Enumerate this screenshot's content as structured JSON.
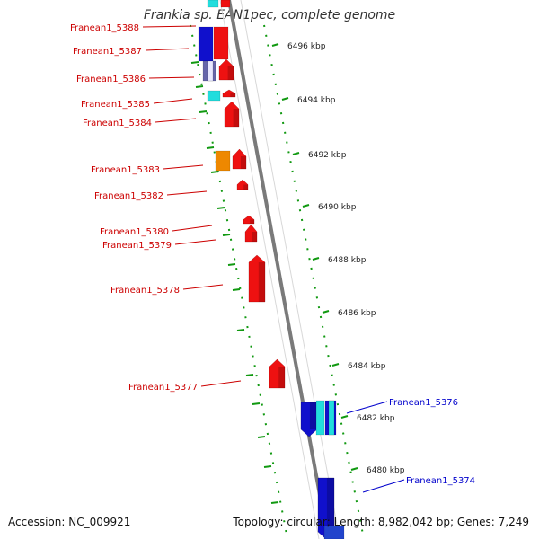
{
  "title": "Frankia sp. EAN1pec, complete genome",
  "accession": "Accession: NC_009921",
  "summary": "Topology: circular; Length: 8,982,042 bp; Genes: 7,249",
  "colors": {
    "forward_gene": "#ee1111",
    "reverse_gene": "#1010cc",
    "cyan_gene": "#22dddd",
    "orange_gene": "#ee8800",
    "forward_label": "#cc0000",
    "reverse_label": "#0000cc",
    "ruler": "#119911",
    "backbone": "#888888"
  },
  "ruler_ticks": [
    {
      "label": "6496 kbp"
    },
    {
      "label": "6494 kbp"
    },
    {
      "label": "6492 kbp"
    },
    {
      "label": "6490 kbp"
    },
    {
      "label": "6488 kbp"
    },
    {
      "label": "6486 kbp"
    },
    {
      "label": "6484 kbp"
    },
    {
      "label": "6482 kbp"
    },
    {
      "label": "6480 kbp"
    }
  ],
  "forward_labels": [
    {
      "name": "Franean1_5388"
    },
    {
      "name": "Franean1_5387"
    },
    {
      "name": "Franean1_5386"
    },
    {
      "name": "Franean1_5385"
    },
    {
      "name": "Franean1_5384"
    },
    {
      "name": "Franean1_5383"
    },
    {
      "name": "Franean1_5382"
    },
    {
      "name": "Franean1_5380"
    },
    {
      "name": "Franean1_5379"
    },
    {
      "name": "Franean1_5378"
    },
    {
      "name": "Franean1_5377"
    }
  ],
  "reverse_labels": [
    {
      "name": "Franean1_5376"
    },
    {
      "name": "Franean1_5374"
    }
  ]
}
